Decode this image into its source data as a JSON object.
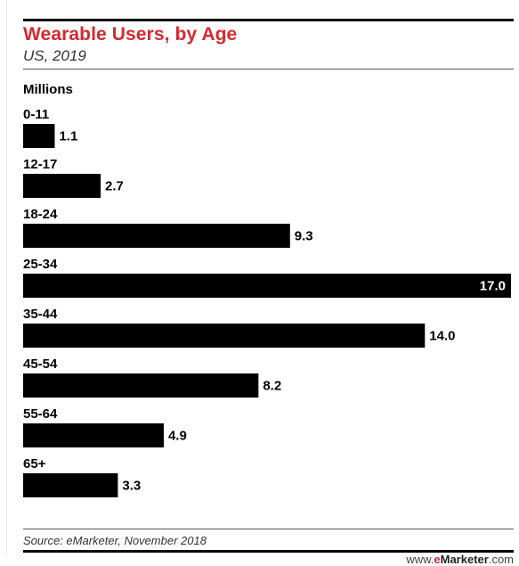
{
  "header": {
    "title": "Wearable Users, by Age",
    "subtitle": "US, 2019",
    "unit": "Millions"
  },
  "footer": {
    "source": "Source: eMarketer, November 2018",
    "brand_prefix": "www.",
    "brand_e": "e",
    "brand_name": "Marketer",
    "brand_suffix": ".com"
  },
  "colors": {
    "title": "#d7282f",
    "bar": "#000000"
  },
  "chart_data": {
    "type": "bar",
    "orientation": "horizontal",
    "title": "Wearable Users, by Age",
    "subtitle": "US, 2019",
    "unit": "Millions",
    "categories": [
      "0-11",
      "12-17",
      "18-24",
      "25-34",
      "35-44",
      "45-54",
      "55-64",
      "65+"
    ],
    "values": [
      1.1,
      2.7,
      9.3,
      17.0,
      14.0,
      8.2,
      4.9,
      3.3
    ],
    "value_labels": [
      "1.1",
      "2.7",
      "9.3",
      "17.0",
      "14.0",
      "8.2",
      "4.9",
      "3.3"
    ],
    "xlim": [
      0,
      17.0
    ],
    "grid": false,
    "legend": "none"
  }
}
